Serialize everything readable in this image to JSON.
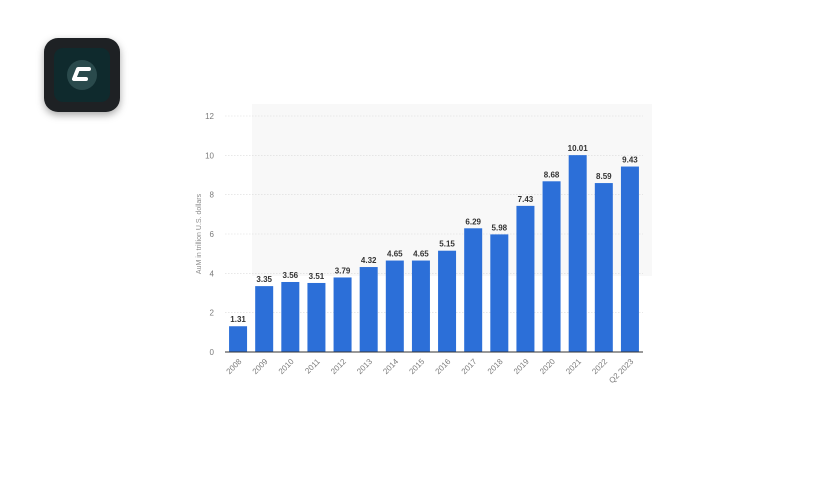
{
  "logo": {
    "icon": "c-logo-icon",
    "color": "#2ec4b6"
  },
  "chart_data": {
    "type": "bar",
    "categories": [
      "2008",
      "2009",
      "2010",
      "2011",
      "2012",
      "2013",
      "2014",
      "2015",
      "2016",
      "2017",
      "2018",
      "2019",
      "2020",
      "2021",
      "2022",
      "Q2 2023"
    ],
    "values": [
      1.31,
      3.35,
      3.56,
      3.51,
      3.79,
      4.32,
      4.65,
      4.65,
      5.15,
      6.29,
      5.98,
      7.43,
      8.68,
      10.01,
      8.59,
      9.43
    ],
    "value_labels": [
      "1.31",
      "3.35",
      "3.56",
      "3.51",
      "3.79",
      "4.32",
      "4.65",
      "4.65",
      "5.15",
      "6.29",
      "5.98",
      "7.43",
      "8.68",
      "10.01",
      "8.59",
      "9.43"
    ],
    "ylabel": "AuM in trillion U.S. dollars",
    "xlabel": "",
    "ylim": [
      0,
      12
    ],
    "yticks": [
      "0",
      "2",
      "4",
      "6",
      "8",
      "10",
      "12"
    ],
    "grid": true,
    "bar_color": "#2c6fd8"
  }
}
